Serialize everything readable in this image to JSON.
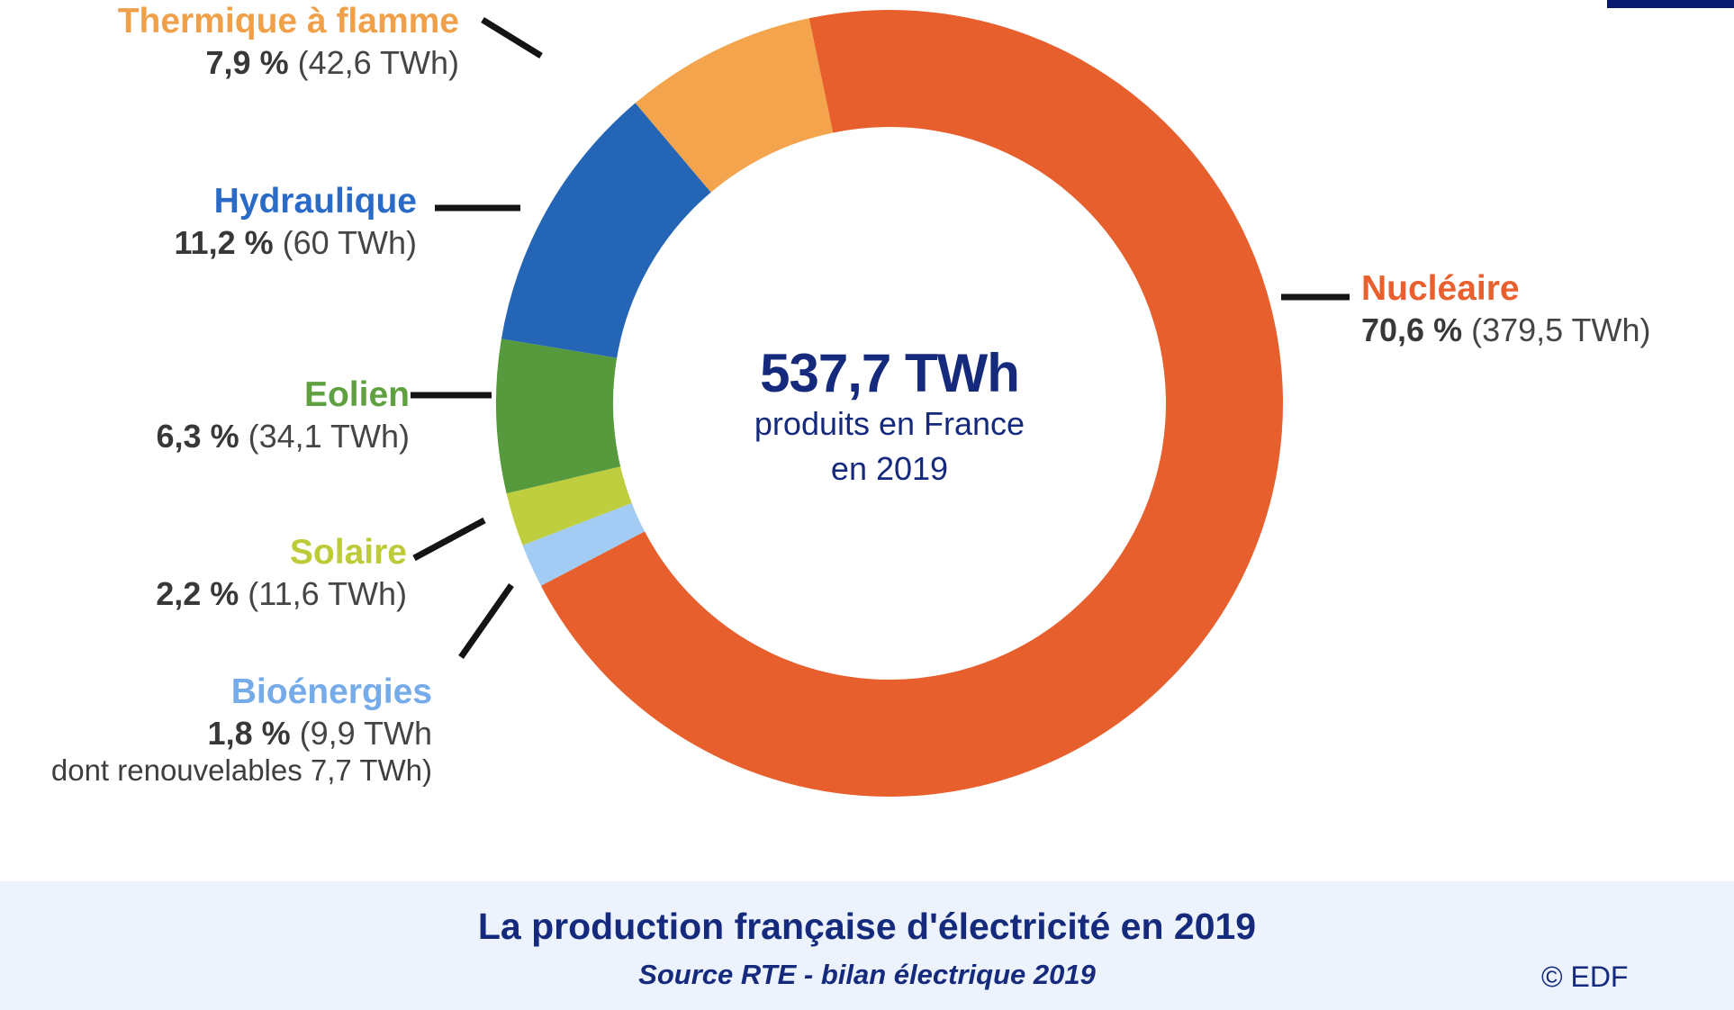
{
  "chart_data": {
    "type": "pie",
    "subtype": "donut",
    "title": "La production française d'électricité en 2019",
    "center": {
      "total": "537,7 TWh",
      "line2": "produits en France",
      "line3": "en 2019"
    },
    "legend_position": "around-chart",
    "start_angle_deg": -11.8,
    "segments": [
      {
        "id": "nucleaire",
        "label": "Nucléaire",
        "pct": 70.6,
        "pct_label": "70,6 %",
        "twh": 379.5,
        "twh_label": "(379,5 TWh)",
        "color": "#E75F2D",
        "label_color": "#E7602E"
      },
      {
        "id": "bioenergies",
        "label": "Bioénergies",
        "pct": 1.8,
        "pct_label": "1,8 %",
        "twh": 9.9,
        "twh_label": "(9,9 TWh",
        "extra": "dont renouvelables 7,7 TWh)",
        "color": "#A2CCF3",
        "label_color": "#74ABE8"
      },
      {
        "id": "solaire",
        "label": "Solaire",
        "pct": 2.2,
        "pct_label": "2,2 %",
        "twh": 11.6,
        "twh_label": "(11,6 TWh)",
        "color": "#BFCE3E",
        "label_color": "#BCCB37"
      },
      {
        "id": "eolien",
        "label": "Eolien",
        "pct": 6.3,
        "pct_label": "6,3 %",
        "twh": 34.1,
        "twh_label": "(34,1 TWh)",
        "color": "#569A3D",
        "label_color": "#5FA041"
      },
      {
        "id": "hydraulique",
        "label": "Hydraulique",
        "pct": 11.2,
        "pct_label": "11,2 %",
        "twh": 60,
        "twh_label": "(60 TWh)",
        "color": "#2565B5",
        "label_color": "#2B6BC8"
      },
      {
        "id": "thermique",
        "label": "Thermique à flamme",
        "pct": 7.9,
        "pct_label": "7,9 %",
        "twh": 42.6,
        "twh_label": "(42,6 TWh)",
        "color": "#F4A44C",
        "label_color": "#F1A04A"
      }
    ]
  },
  "footer": {
    "title": "La production française d'électricité en 2019",
    "source": "Source RTE - bilan électrique 2019",
    "copyright": "© EDF"
  },
  "colors": {
    "navy_text": "#152A7C",
    "footer_background": "#ECF3FC",
    "brand_strip": "#081A6E",
    "leader_line": "#141414",
    "value_text": "#3B3B3B"
  }
}
